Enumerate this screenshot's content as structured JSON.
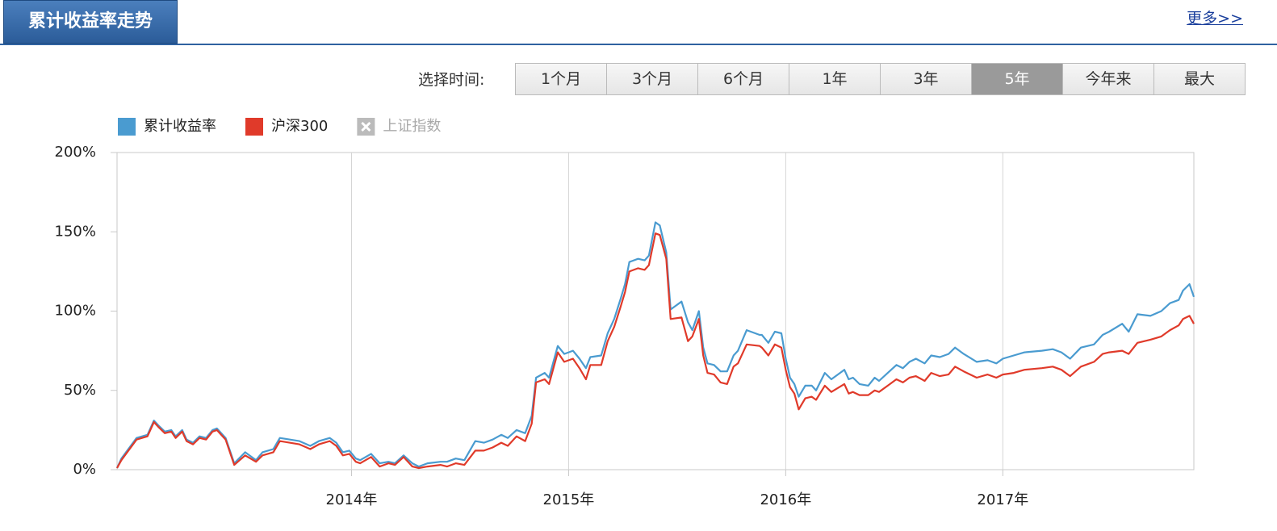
{
  "header": {
    "title": "累计收益率走势",
    "more_link": "更多>>"
  },
  "time_selector": {
    "label": "选择时间:",
    "tabs": [
      {
        "label": "1个月",
        "active": false
      },
      {
        "label": "3个月",
        "active": false
      },
      {
        "label": "6个月",
        "active": false
      },
      {
        "label": "1年",
        "active": false
      },
      {
        "label": "3年",
        "active": false
      },
      {
        "label": "5年",
        "active": true
      },
      {
        "label": "今年来",
        "active": false
      },
      {
        "label": "最大",
        "active": false
      }
    ]
  },
  "chart_data": {
    "type": "line",
    "x": [
      2012.92,
      2012.94,
      2013.01,
      2013.06,
      2013.09,
      2013.11,
      2013.14,
      2013.17,
      2013.19,
      2013.22,
      2013.24,
      2013.27,
      2013.3,
      2013.33,
      2013.36,
      2013.38,
      2013.42,
      2013.46,
      2013.51,
      2013.56,
      2013.59,
      2013.64,
      2013.67,
      2013.76,
      2013.81,
      2013.85,
      2013.9,
      2013.93,
      2013.96,
      2013.99,
      2014.02,
      2014.04,
      2014.09,
      2014.13,
      2014.17,
      2014.2,
      2014.24,
      2014.28,
      2014.31,
      2014.35,
      2014.41,
      2014.44,
      2014.48,
      2014.52,
      2014.57,
      2014.61,
      2014.65,
      2014.69,
      2014.72,
      2014.76,
      2014.8,
      2014.83,
      2014.85,
      2014.89,
      2014.91,
      2014.95,
      2014.98,
      2015.02,
      2015.05,
      2015.08,
      2015.1,
      2015.15,
      2015.18,
      2015.21,
      2015.24,
      2015.26,
      2015.28,
      2015.32,
      2015.35,
      2015.37,
      2015.4,
      2015.42,
      2015.45,
      2015.47,
      2015.52,
      2015.55,
      2015.57,
      2015.6,
      2015.62,
      2015.64,
      2015.67,
      2015.7,
      2015.73,
      2015.76,
      2015.78,
      2015.82,
      2015.88,
      2015.89,
      2015.92,
      2015.95,
      2015.98,
      2016.0,
      2016.02,
      2016.04,
      2016.06,
      2016.09,
      2016.12,
      2016.14,
      2016.18,
      2016.21,
      2016.27,
      2016.29,
      2016.31,
      2016.34,
      2016.38,
      2016.41,
      2016.43,
      2016.47,
      2016.51,
      2016.54,
      2016.57,
      2016.6,
      2016.64,
      2016.67,
      2016.71,
      2016.75,
      2016.78,
      2016.82,
      2016.88,
      2016.93,
      2016.97,
      2017.0,
      2017.05,
      2017.1,
      2017.18,
      2017.23,
      2017.27,
      2017.31,
      2017.36,
      2017.42,
      2017.46,
      2017.49,
      2017.55,
      2017.58,
      2017.62,
      2017.68,
      2017.73,
      2017.77,
      2017.81,
      2017.83,
      2017.86,
      2017.88
    ],
    "series": [
      {
        "name": "累计收益率",
        "color": "#4a9bd0",
        "values": [
          1,
          7,
          20,
          22,
          31,
          28,
          24,
          25,
          21,
          25,
          19,
          17,
          21,
          20,
          25,
          26,
          20,
          4,
          11,
          6,
          11,
          13,
          20,
          18,
          15,
          18,
          20,
          17,
          11,
          12,
          7,
          6,
          10,
          4,
          5,
          4,
          9,
          4,
          2,
          4,
          5,
          5,
          7,
          6,
          18,
          17,
          19,
          22,
          20,
          25,
          23,
          34,
          58,
          61,
          58,
          78,
          73,
          75,
          70,
          64,
          71,
          72,
          86,
          95,
          108,
          117,
          131,
          133,
          132,
          135,
          156,
          154,
          137,
          101,
          106,
          93,
          88,
          100,
          77,
          67,
          66,
          62,
          62,
          72,
          75,
          88,
          85,
          85,
          80,
          87,
          86,
          70,
          58,
          54,
          46,
          53,
          53,
          50,
          61,
          57,
          63,
          57,
          58,
          54,
          53,
          58,
          56,
          61,
          66,
          64,
          68,
          70,
          67,
          72,
          71,
          73,
          77,
          73,
          68,
          69,
          67,
          70,
          72,
          74,
          75,
          76,
          74,
          70,
          77,
          79,
          85,
          87,
          92,
          87,
          98,
          97,
          100,
          105,
          107,
          113,
          117,
          109
        ]
      },
      {
        "name": "沪深300",
        "color": "#e03a2a",
        "values": [
          1,
          6,
          19,
          21,
          30,
          27,
          23,
          24,
          20,
          24,
          18,
          16,
          20,
          19,
          24,
          25,
          19,
          3,
          9,
          5,
          9,
          11,
          18,
          16,
          13,
          16,
          18,
          15,
          9,
          10,
          5,
          4,
          8,
          2,
          4,
          3,
          8,
          2,
          1,
          2,
          3,
          2,
          4,
          3,
          12,
          12,
          14,
          17,
          15,
          21,
          18,
          29,
          55,
          57,
          54,
          74,
          68,
          70,
          64,
          57,
          66,
          66,
          81,
          90,
          103,
          112,
          125,
          127,
          126,
          129,
          149,
          148,
          133,
          95,
          96,
          81,
          84,
          95,
          72,
          61,
          60,
          55,
          54,
          65,
          67,
          79,
          78,
          77,
          72,
          79,
          77,
          63,
          52,
          48,
          38,
          45,
          46,
          44,
          53,
          49,
          54,
          48,
          49,
          47,
          47,
          50,
          49,
          53,
          57,
          55,
          58,
          59,
          56,
          61,
          59,
          60,
          65,
          62,
          58,
          60,
          58,
          60,
          61,
          63,
          64,
          65,
          63,
          59,
          65,
          68,
          73,
          74,
          75,
          73,
          80,
          82,
          84,
          88,
          91,
          95,
          97,
          92
        ]
      }
    ],
    "inactive_series": [
      {
        "name": "上证指数",
        "color": "#bbbbbb"
      }
    ],
    "xlim": [
      2012.92,
      2017.88
    ],
    "xticks": [
      {
        "value": 2014,
        "label": "2014年"
      },
      {
        "value": 2015,
        "label": "2015年"
      },
      {
        "value": 2016,
        "label": "2016年"
      },
      {
        "value": 2017,
        "label": "2017年"
      }
    ],
    "ylim": [
      0,
      200
    ],
    "yticks": [
      {
        "value": 0,
        "label": "0%"
      },
      {
        "value": 50,
        "label": "50%"
      },
      {
        "value": 100,
        "label": "100%"
      },
      {
        "value": 150,
        "label": "150%"
      },
      {
        "value": 200,
        "label": "200%"
      }
    ],
    "grid": "x"
  }
}
